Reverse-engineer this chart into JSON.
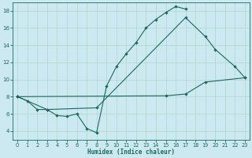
{
  "xlabel": "Humidex (Indice chaleur)",
  "background_color": "#cce8f0",
  "grid_color": "#b0d8c8",
  "line_color": "#1a6b5a",
  "xlim": [
    -0.5,
    23.5
  ],
  "ylim": [
    3.0,
    19.0
  ],
  "yticks": [
    4,
    6,
    8,
    10,
    12,
    14,
    16,
    18
  ],
  "xticks": [
    0,
    1,
    2,
    3,
    4,
    5,
    6,
    7,
    8,
    9,
    10,
    11,
    12,
    13,
    14,
    15,
    16,
    17,
    18,
    19,
    20,
    21,
    22,
    23
  ],
  "curve1_x": [
    0,
    1,
    2,
    3,
    4,
    5,
    6,
    7,
    8,
    9,
    10,
    11,
    12,
    13,
    14,
    15,
    16,
    17
  ],
  "curve1_y": [
    8.0,
    7.5,
    6.5,
    6.5,
    5.8,
    5.7,
    6.0,
    4.3,
    3.8,
    9.2,
    11.5,
    13.0,
    14.3,
    16.0,
    17.0,
    17.8,
    18.5,
    18.2
  ],
  "curve2_x": [
    0,
    3,
    8,
    17,
    19,
    20,
    22,
    23
  ],
  "curve2_y": [
    8.0,
    6.5,
    6.7,
    17.2,
    15.0,
    13.5,
    11.5,
    10.2
  ],
  "curve3_x": [
    0,
    15,
    17,
    19,
    23
  ],
  "curve3_y": [
    8.0,
    8.1,
    8.3,
    9.7,
    10.2
  ]
}
